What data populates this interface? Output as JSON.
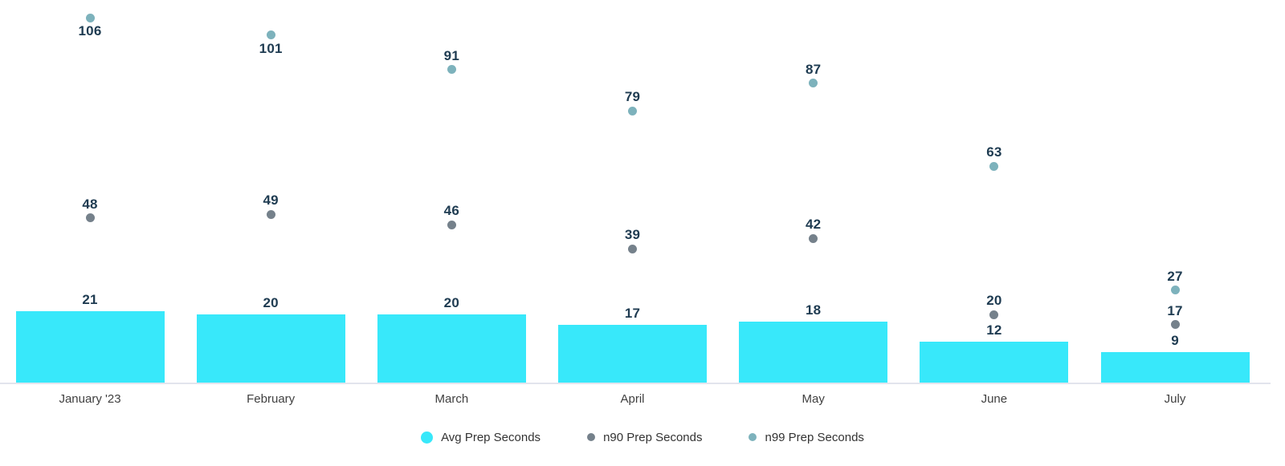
{
  "chart_data": {
    "type": "bar",
    "categories": [
      "January '23",
      "February",
      "March",
      "April",
      "May",
      "June",
      "July"
    ],
    "series": [
      {
        "name": "Avg Prep Seconds",
        "render": "bar",
        "color": "#38e8fa",
        "values": [
          21,
          20,
          20,
          17,
          18,
          12,
          9
        ]
      },
      {
        "name": "n90 Prep Seconds",
        "render": "point",
        "color": "#75818b",
        "values": [
          48,
          49,
          46,
          39,
          42,
          20,
          17
        ]
      },
      {
        "name": "n99 Prep Seconds",
        "render": "point",
        "color": "#7db2bc",
        "values": [
          106,
          101,
          91,
          79,
          87,
          63,
          27
        ],
        "label_below": [
          true,
          true,
          false,
          false,
          false,
          false,
          false
        ]
      }
    ],
    "title": "",
    "xlabel": "",
    "ylabel": "",
    "ylim": [
      0,
      111
    ],
    "grid": false,
    "legend_position": "bottom",
    "value_labels_shown": true,
    "value_label_color": "#1e3b51",
    "category_label_color": "#3f3f3f",
    "axis_line_color": "#e2e4ed",
    "background_color": "#ffffff"
  },
  "legend": {
    "items": [
      {
        "label": "Avg Prep Seconds",
        "color": "#38e8fa"
      },
      {
        "label": "n90 Prep Seconds",
        "color": "#75818b"
      },
      {
        "label": "n99 Prep Seconds",
        "color": "#7db2bc"
      }
    ]
  }
}
